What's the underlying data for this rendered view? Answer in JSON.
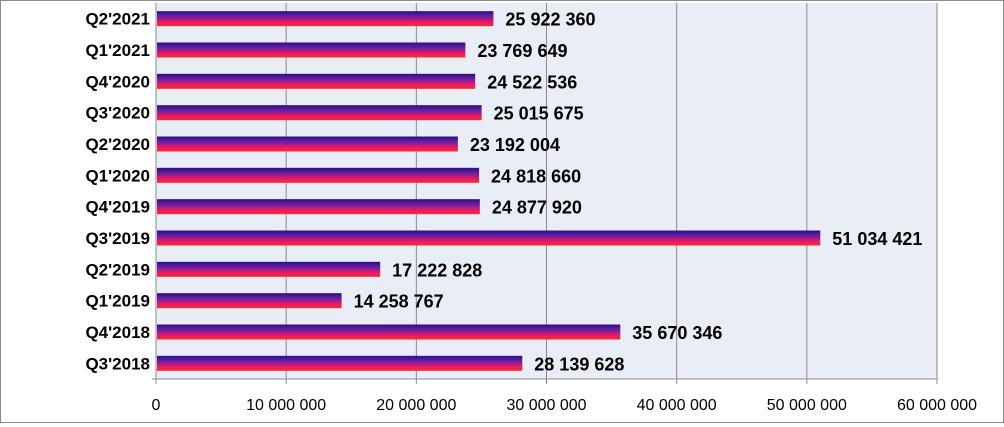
{
  "chart_data": {
    "type": "bar",
    "orientation": "horizontal",
    "title": "",
    "xlabel": "",
    "ylabel": "",
    "categories": [
      "Q3'2018",
      "Q4'2018",
      "Q1'2019",
      "Q2'2019",
      "Q3'2019",
      "Q4'2019",
      "Q1'2020",
      "Q2'2020",
      "Q3'2020",
      "Q4'2020",
      "Q1'2021",
      "Q2'2021"
    ],
    "values": [
      28139628,
      35670346,
      14258767,
      17222828,
      51034421,
      24877920,
      24818660,
      23192004,
      25015675,
      24522536,
      23769649,
      25922360
    ],
    "value_labels": [
      "28 139 628",
      "35 670 346",
      "14 258 767",
      "17 222 828",
      "51 034 421",
      "24 877 920",
      "24 818 660",
      "23 192 004",
      "25 015 675",
      "24 522 536",
      "23 769 649",
      "25 922 360"
    ],
    "xlim": [
      0,
      60000000
    ],
    "ticks": [
      0,
      10000000,
      20000000,
      30000000,
      40000000,
      50000000,
      60000000
    ],
    "tick_labels": [
      "0",
      "10 000 000",
      "20 000 000",
      "30 000 000",
      "40 000 000",
      "50 000 000",
      "60 000 000"
    ],
    "grid": "vertical",
    "legend": "none",
    "colors": {
      "plot_background": "#e9edf6",
      "gridline": "#8a8a8a",
      "bar_gradient": [
        "#2a0e8c",
        "#6a1f9e",
        "#e21a6c",
        "#ff2a2a"
      ]
    }
  }
}
